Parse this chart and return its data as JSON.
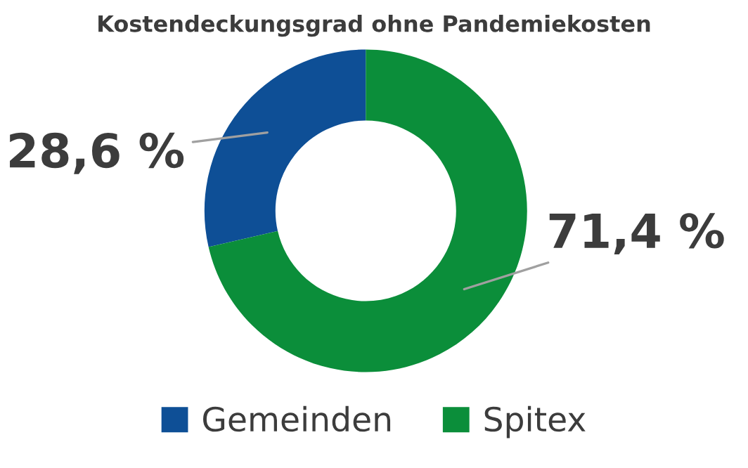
{
  "chart_data": {
    "type": "donut",
    "title": "Kostendeckungsgrad ohne Pandemiekosten",
    "categories": [
      "Gemeinden",
      "Spitex"
    ],
    "values": [
      28.6,
      71.4
    ],
    "colors": [
      "#0e4f96",
      "#0b8e3a"
    ],
    "value_labels": [
      "28,6 %",
      "71,4 %"
    ],
    "legend": "bottom"
  }
}
